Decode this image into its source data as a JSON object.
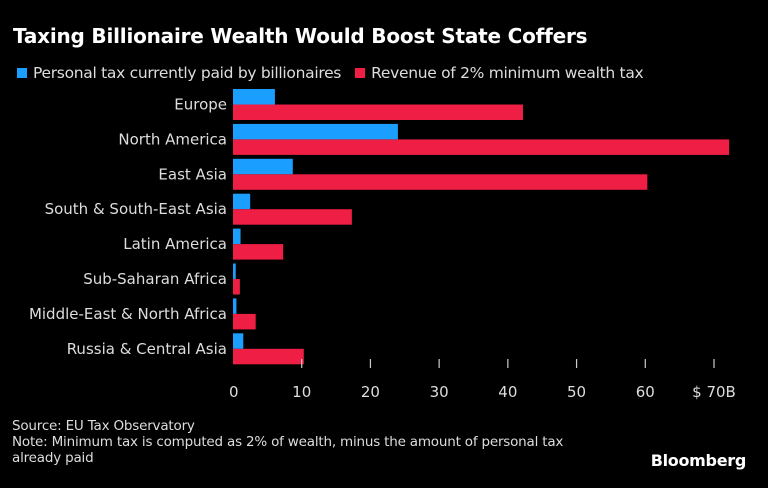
{
  "chart_data": {
    "type": "bar",
    "orientation": "horizontal",
    "title": "Taxing Billionaire Wealth Would Boost State Coffers",
    "categories": [
      "Europe",
      "North America",
      "East Asia",
      "South & South-East Asia",
      "Latin America",
      "Sub-Saharan Africa",
      "Middle-East & North Africa",
      "Russia & Central Asia"
    ],
    "series": [
      {
        "name": "Personal tax currently paid by billionaires",
        "color": "#1A9EFF",
        "values": [
          6.1,
          24.0,
          8.7,
          2.5,
          1.1,
          0.4,
          0.5,
          1.5
        ]
      },
      {
        "name": "Revenue of 2% minimum wealth tax",
        "color": "#EE1E44",
        "values": [
          42.2,
          72.2,
          60.3,
          17.3,
          7.3,
          1.0,
          3.3,
          10.3
        ]
      }
    ],
    "xlabel": "",
    "ylabel": "",
    "xlim": [
      0,
      70
    ],
    "xticks": [
      0,
      10,
      20,
      30,
      40,
      50,
      60,
      70
    ],
    "xtick_labels": [
      "0",
      "10",
      "20",
      "30",
      "40",
      "50",
      "60",
      "$ 70B"
    ],
    "grid": false,
    "legend_position": "top-left"
  },
  "footer": {
    "source": "Source: EU Tax Observatory",
    "note": "Note: Minimum tax is computed as 2% of wealth, minus the amount of personal tax already paid"
  },
  "brand": "Bloomberg"
}
